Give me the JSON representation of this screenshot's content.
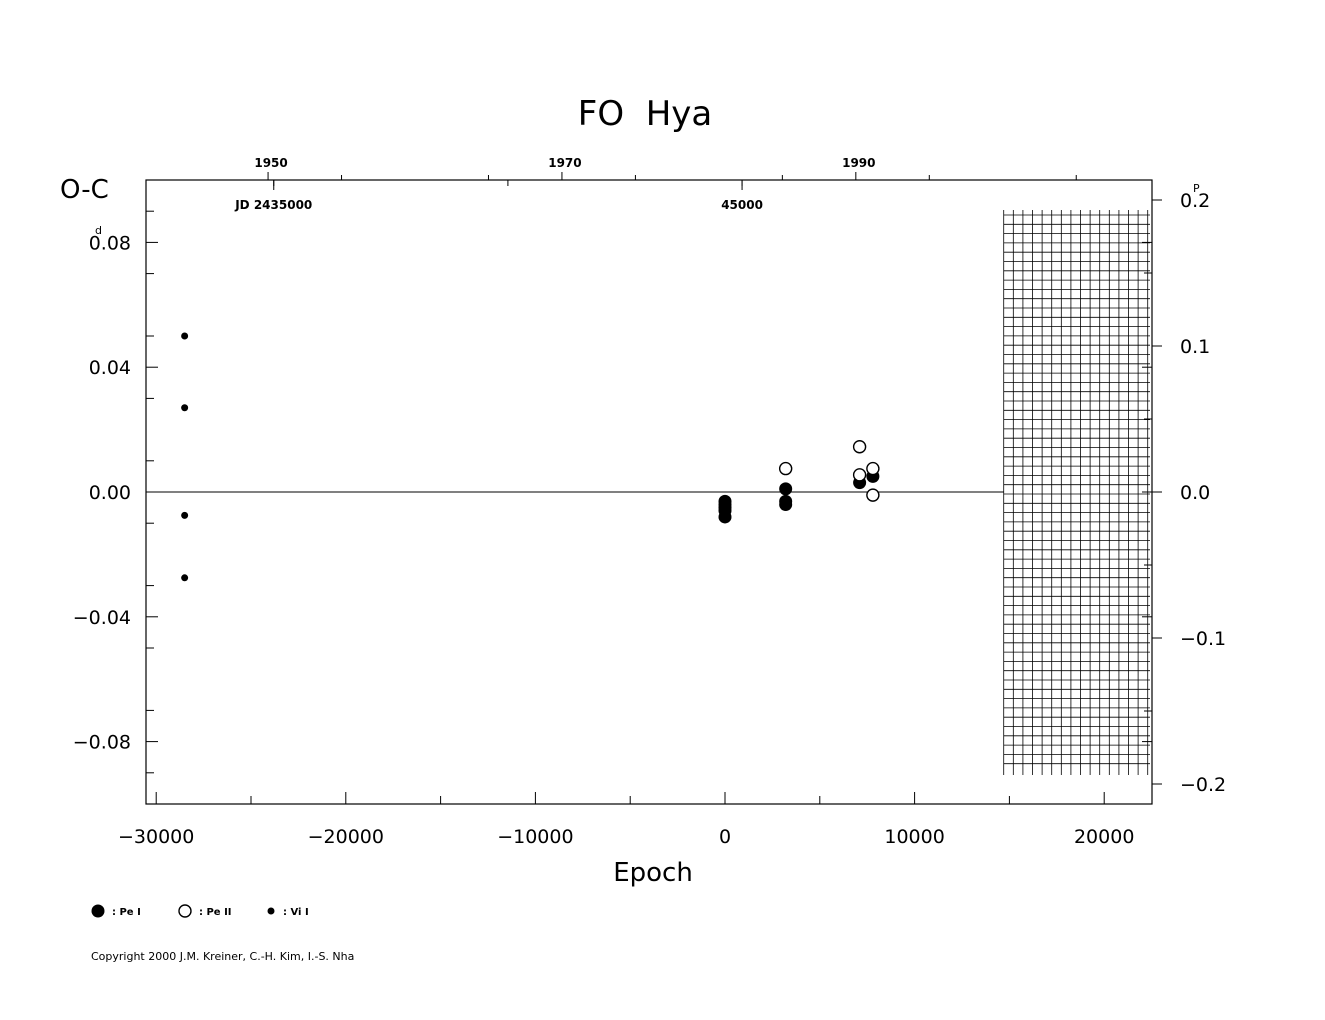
{
  "chart_data": {
    "type": "scatter",
    "title": "FO  Hya",
    "xlabel": "Epoch",
    "ylabel": "O-C",
    "y_unit_left": "d",
    "y_unit_right": "P",
    "xlim": [
      -30500,
      22500
    ],
    "ylim": [
      -0.1,
      0.1
    ],
    "x_ticks": [
      -30000,
      -20000,
      -10000,
      0,
      10000,
      20000
    ],
    "x_tick_labels": [
      "−30000",
      "−20000",
      "−10000",
      "0",
      "10000",
      "20000"
    ],
    "y_ticks_left": [
      0.08,
      0.04,
      0.0,
      -0.04,
      -0.08
    ],
    "y_tick_labels_left": [
      "0.08",
      "0.04",
      "0.00",
      "−0.04",
      "−0.08"
    ],
    "y_ticks_right": [
      0.2,
      0.1,
      0.0,
      -0.1,
      -0.2
    ],
    "y_tick_labels_right": [
      "0.2",
      "0.1",
      "0.0",
      "−0.1",
      "−0.2"
    ],
    "year_ticks": [
      {
        "label": "1950",
        "epoch": -24100
      },
      {
        "label": "1970",
        "epoch": -8600
      },
      {
        "label": "1990",
        "epoch": 6900
      }
    ],
    "jd_labels": [
      {
        "label": "JD  2435000",
        "epoch": -23800
      },
      {
        "label": "45000",
        "epoch": 900
      }
    ],
    "zero_line_to_epoch": 14700,
    "hatched_region_from_epoch": 14700,
    "grid": false,
    "legend_position": "bottom-left",
    "series": [
      {
        "name": ": Pe I",
        "marker": "filled-circle",
        "x": [
          0,
          0,
          0,
          0,
          0,
          3200,
          3200,
          3200,
          7100,
          7800
        ],
        "y": [
          -0.003,
          -0.004,
          -0.005,
          -0.006,
          -0.008,
          0.001,
          -0.003,
          -0.004,
          0.003,
          0.005
        ]
      },
      {
        "name": ": Pe II",
        "marker": "open-circle",
        "x": [
          3200,
          7100,
          7100,
          7800,
          7800
        ],
        "y": [
          0.0075,
          0.0145,
          0.0055,
          0.0075,
          -0.001
        ]
      },
      {
        "name": ": Vi I",
        "marker": "small-dot",
        "x": [
          -28500,
          -28500,
          -28500,
          -28500
        ],
        "y": [
          0.05,
          0.027,
          -0.0075,
          -0.0275
        ]
      }
    ]
  },
  "copyright": "Copyright 2000 J.M. Kreiner, C.-H. Kim, I.-S. Nha"
}
